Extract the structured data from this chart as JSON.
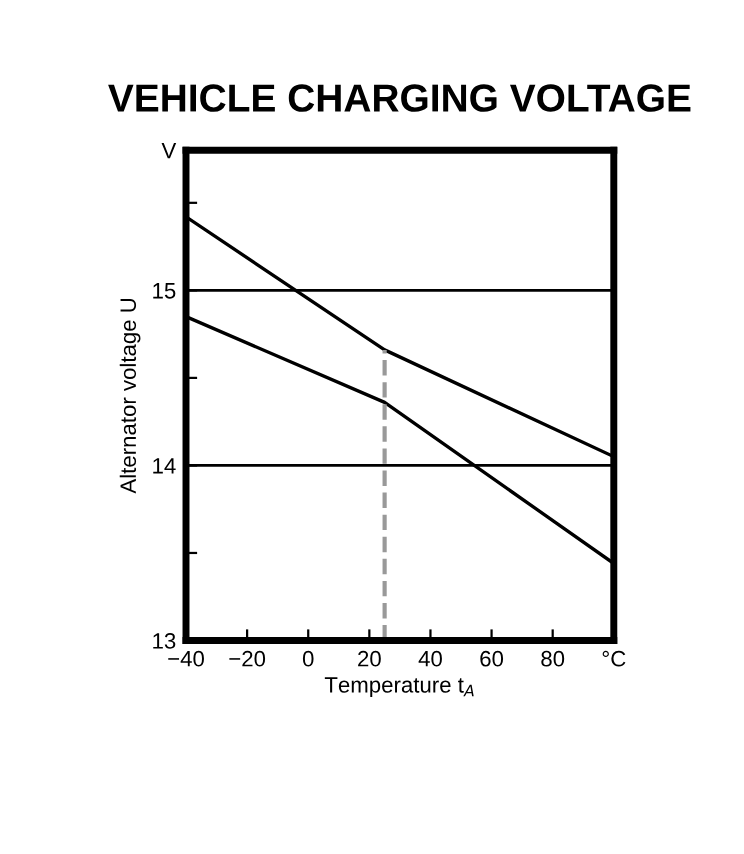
{
  "chart_data": {
    "type": "line",
    "title": "VEHICLE CHARGING VOLTAGE",
    "xlabel": "Temperature t$_{A}$",
    "ylabel": "Alternator voltage U",
    "x": [
      -40,
      25,
      100
    ],
    "series": [
      {
        "color": "#000000",
        "values": [
          15.42,
          14.66,
          14.05
        ]
      },
      {
        "color": "#000000",
        "values": [
          14.85,
          14.36,
          13.44
        ]
      }
    ],
    "xlim": [
      -40,
      100
    ],
    "xticks": [
      -40,
      -20,
      0,
      20,
      40,
      60,
      80,
      {
        "value": 100,
        "label": "°C"
      }
    ],
    "ylim": [
      13,
      15.8
    ],
    "yticks": [
      13,
      {
        "value": 13.5,
        "label": null
      },
      14,
      {
        "value": 14.5,
        "label": null
      },
      15,
      {
        "value": 15.5,
        "label": null
      },
      {
        "value": 15.8,
        "label": "V"
      }
    ],
    "ref_lines": [
      {
        "axis": "y",
        "value": 14,
        "color": "#000000",
        "line_style": "solid"
      },
      {
        "axis": "y",
        "value": 15,
        "color": "#000000",
        "line_style": "solid"
      },
      {
        "axis": "x",
        "value": 25,
        "color": "#999999",
        "line_style": "dashed"
      }
    ],
    "grid": false,
    "legend": false,
    "marker": "none",
    "line_style": "solid"
  }
}
